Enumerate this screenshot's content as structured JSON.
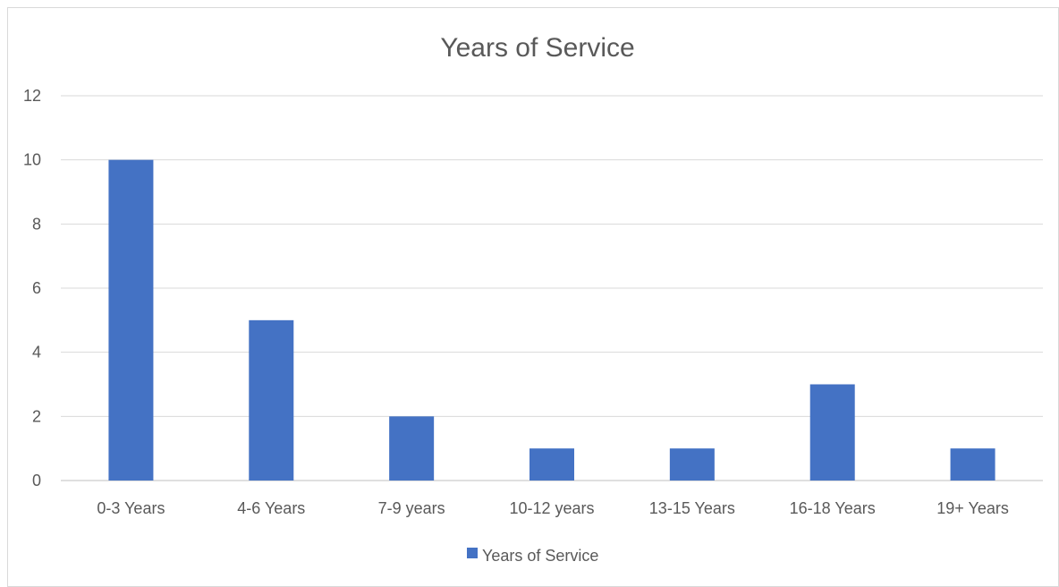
{
  "chart_data": {
    "type": "bar",
    "title": "Years of Service",
    "xlabel": "",
    "ylabel": "",
    "categories": [
      "0-3 Years",
      "4-6 Years",
      "7-9 years",
      "10-12 years",
      "13-15 Years",
      "16-18 Years",
      "19+ Years"
    ],
    "series": [
      {
        "name": "Years of Service",
        "values": [
          10,
          5,
          2,
          1,
          1,
          3,
          1
        ],
        "color": "#4472c4"
      }
    ],
    "ylim": [
      0,
      12
    ],
    "yticks": [
      "0",
      "2",
      "4",
      "6",
      "8",
      "10",
      "12"
    ],
    "grid": true,
    "legend_position": "bottom"
  }
}
